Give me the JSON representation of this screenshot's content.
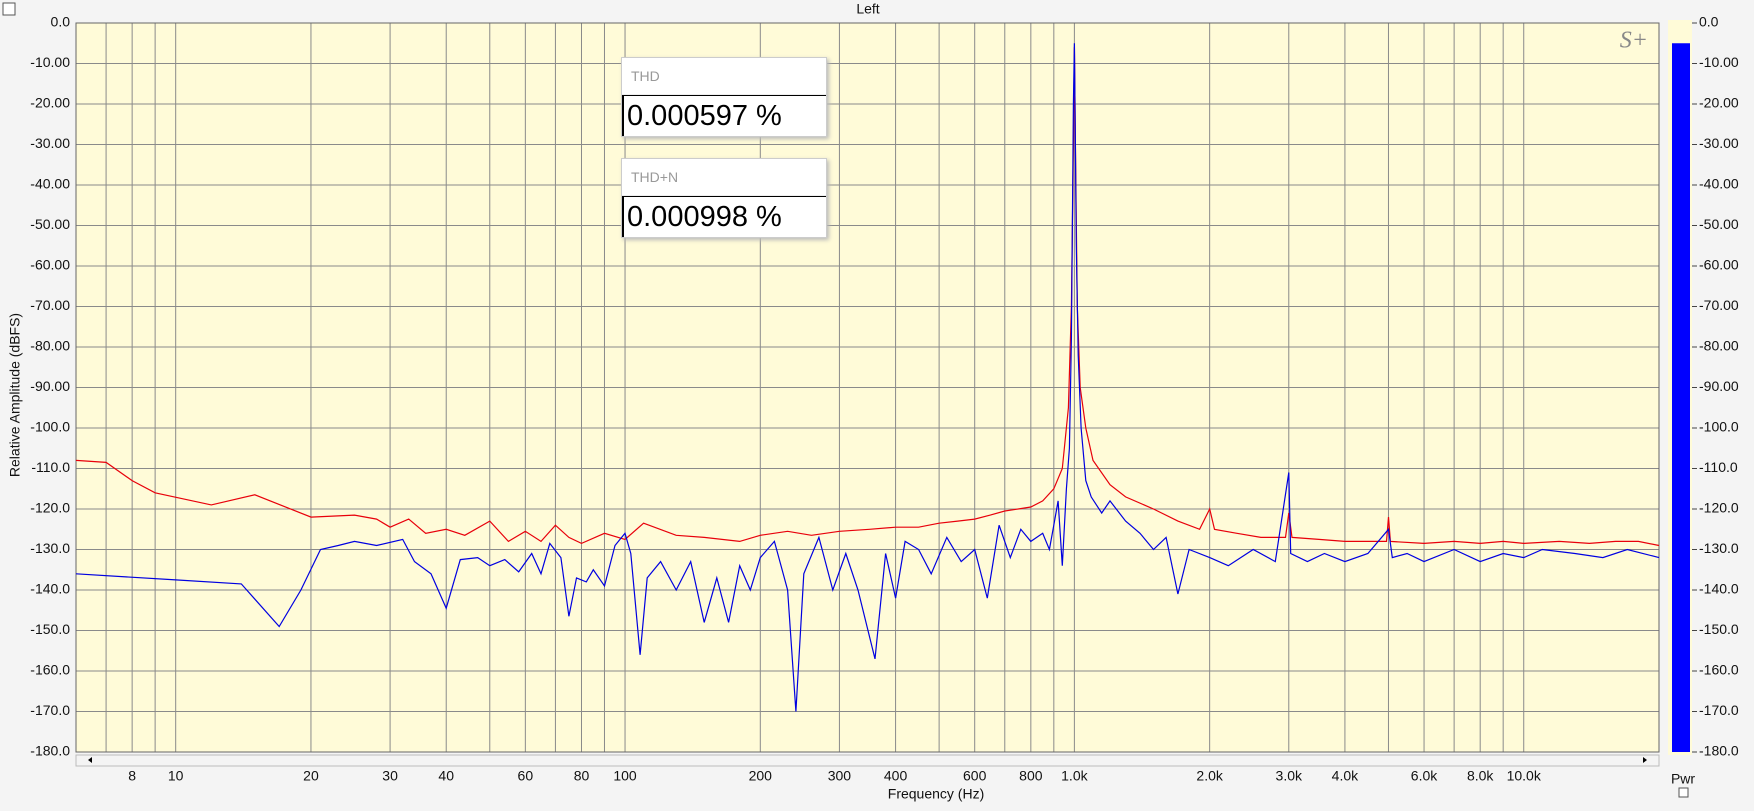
{
  "chart_data": {
    "type": "line",
    "title": "Left",
    "xlabel": "Frequency (Hz)",
    "ylabel": "Relative Amplitude (dBFS)",
    "logo": "S+",
    "xscale": "log",
    "grid": true,
    "xlim": [
      6,
      20000
    ],
    "ylim": [
      -180,
      0
    ],
    "xticks": [
      8,
      10,
      20,
      30,
      40,
      60,
      80,
      100,
      200,
      300,
      400,
      600,
      800,
      {
        "value": 1000,
        "label": "1.0k"
      },
      {
        "value": 2000,
        "label": "2.0k"
      },
      {
        "value": 3000,
        "label": "3.0k"
      },
      {
        "value": 4000,
        "label": "4.0k"
      },
      {
        "value": 6000,
        "label": "6.0k"
      },
      {
        "value": 8000,
        "label": "8.0k"
      },
      {
        "value": 10000,
        "label": "10.0k"
      }
    ],
    "xminor": [
      7,
      9,
      50,
      70,
      90,
      500,
      700,
      900,
      5000,
      7000,
      9000
    ],
    "yticks": [
      {
        "value": 0,
        "label": "0.0"
      },
      {
        "value": -10,
        "label": "-10.00"
      },
      {
        "value": -20,
        "label": "-20.00"
      },
      {
        "value": -30,
        "label": "-30.00"
      },
      {
        "value": -40,
        "label": "-40.00"
      },
      {
        "value": -50,
        "label": "-50.00"
      },
      {
        "value": -60,
        "label": "-60.00"
      },
      {
        "value": -70,
        "label": "-70.00"
      },
      {
        "value": -80,
        "label": "-80.00"
      },
      {
        "value": -90,
        "label": "-90.00"
      },
      {
        "value": -100,
        "label": "-100.0"
      },
      {
        "value": -110,
        "label": "-110.0"
      },
      {
        "value": -120,
        "label": "-120.0"
      },
      {
        "value": -130,
        "label": "-130.0"
      },
      {
        "value": -140,
        "label": "-140.0"
      },
      {
        "value": -150,
        "label": "-150.0"
      },
      {
        "value": -160,
        "label": "-160.0"
      },
      {
        "value": -170,
        "label": "-170.0"
      },
      {
        "value": -180,
        "label": "-180.0"
      }
    ],
    "series": [
      {
        "color": "#e8000b",
        "x": [
          6,
          7,
          8,
          9,
          12,
          15,
          20,
          25,
          28,
          30,
          33,
          36,
          40,
          44,
          50,
          55,
          60,
          65,
          70,
          75,
          80,
          90,
          100,
          110,
          130,
          150,
          180,
          200,
          230,
          260,
          300,
          350,
          400,
          450,
          500,
          550,
          600,
          650,
          700,
          750,
          800,
          850,
          900,
          940,
          970,
          985,
          995,
          1000,
          1005,
          1015,
          1030,
          1060,
          1100,
          1200,
          1300,
          1500,
          1700,
          1900,
          2000,
          2050,
          2300,
          2600,
          2950,
          3000,
          3050,
          3500,
          4000,
          4500,
          4950,
          5000,
          5050,
          6000,
          7000,
          8000,
          9000,
          10000,
          12000,
          14000,
          16000,
          18000,
          20000
        ],
        "values": [
          -108,
          -108.5,
          -113,
          -116,
          -119,
          -116.5,
          -122,
          -121.5,
          -122.5,
          -124.5,
          -122.5,
          -126,
          -125,
          -126.5,
          -123,
          -128,
          -125.5,
          -128,
          -124,
          -127,
          -128.5,
          -126,
          -127.5,
          -123.5,
          -126.5,
          -127,
          -128,
          -126.5,
          -125.5,
          -126.5,
          -125.5,
          -125,
          -124.5,
          -124.5,
          -123.5,
          -123,
          -122.5,
          -121.5,
          -120.5,
          -120,
          -119.5,
          -118,
          -115,
          -110,
          -95,
          -70,
          -30,
          -6,
          -30,
          -70,
          -90,
          -100,
          -108,
          -114,
          -117,
          -120,
          -123,
          -125,
          -120,
          -125,
          -126,
          -127,
          -127,
          -121,
          -127,
          -127.5,
          -128,
          -128,
          -128,
          -122,
          -128,
          -128.5,
          -128,
          -128.5,
          -128,
          -128.5,
          -128,
          -128.5,
          -128,
          -128,
          -129
        ]
      },
      {
        "color": "#0000e0",
        "x": [
          6,
          10,
          14,
          17,
          19,
          21,
          23,
          25,
          28,
          32,
          34,
          37,
          40,
          43,
          47,
          50,
          54,
          58,
          62,
          65,
          68,
          72,
          75,
          78,
          82,
          85,
          90,
          95,
          100,
          103,
          108,
          112,
          120,
          130,
          140,
          150,
          160,
          170,
          180,
          190,
          200,
          215,
          230,
          240,
          250,
          270,
          290,
          310,
          330,
          360,
          380,
          400,
          420,
          450,
          480,
          520,
          560,
          600,
          640,
          680,
          720,
          760,
          800,
          850,
          880,
          900,
          920,
          940,
          960,
          975,
          985,
          995,
          1000,
          1005,
          1010,
          1020,
          1035,
          1060,
          1090,
          1150,
          1200,
          1300,
          1400,
          1500,
          1600,
          1700,
          1800,
          2000,
          2200,
          2500,
          2800,
          3000,
          3030,
          3300,
          3600,
          4000,
          4500,
          5000,
          5100,
          5500,
          6000,
          7000,
          8000,
          9000,
          10000,
          11000,
          13000,
          15000,
          17000,
          20000
        ],
        "values": [
          -136,
          -137.5,
          -138.5,
          -149,
          -140,
          -130,
          -129,
          -128,
          -129,
          -127.5,
          -133,
          -136,
          -144.5,
          -132.5,
          -132,
          -134,
          -132.5,
          -135.5,
          -131,
          -136,
          -128.5,
          -132,
          -146.5,
          -137,
          -138,
          -135,
          -139,
          -129,
          -126,
          -131,
          -156,
          -137,
          -133,
          -140,
          -133,
          -148,
          -137,
          -148,
          -134,
          -140,
          -132,
          -128,
          -140,
          -170,
          -136,
          -127,
          -140,
          -131,
          -140,
          -157,
          -131,
          -142,
          -128,
          -130,
          -136,
          -127,
          -133,
          -130,
          -142,
          -124,
          -132,
          -125,
          -128,
          -126,
          -130,
          -124,
          -118,
          -134,
          -115,
          -105,
          -78,
          -20,
          -5,
          -30,
          -55,
          -82,
          -100,
          -113,
          -117,
          -121,
          -118,
          -123,
          -126,
          -130,
          -127,
          -141,
          -130,
          -132,
          -134,
          -130,
          -133,
          -111,
          -131,
          -133,
          -131,
          -133,
          -131,
          -125,
          -132,
          -131,
          -133,
          -130,
          -133,
          -131,
          -132,
          -130,
          -131,
          -132,
          -130,
          -132
        ]
      }
    ]
  },
  "meter": {
    "label": "Pwr",
    "value": -5,
    "color": "#0000ff"
  },
  "panels": [
    {
      "title": "THD",
      "value": "0.000597 %"
    },
    {
      "title": "THD+N",
      "value": "0.000998 %"
    }
  ]
}
